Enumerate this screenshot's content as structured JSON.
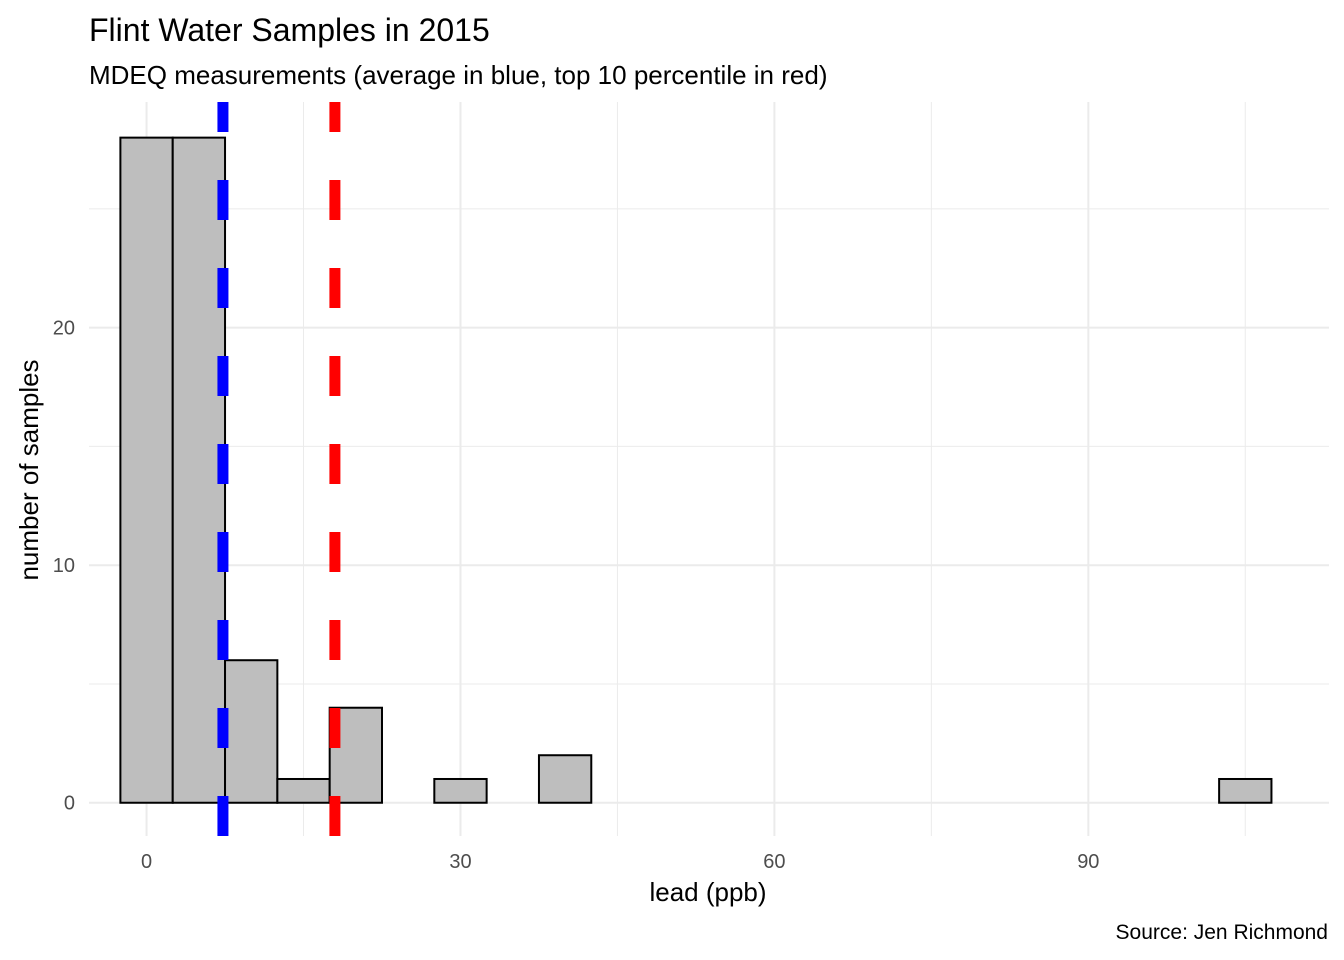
{
  "chart_data": {
    "type": "bar",
    "title": "Flint Water Samples in 2015",
    "subtitle": "MDEQ measurements (average in blue, top 10 percentile in red)",
    "caption": "Source: Jen Richmond",
    "xlabel": "lead (ppb)",
    "ylabel": "number of samples",
    "xlim": [
      -5.5,
      113
    ],
    "ylim": [
      -1.4,
      29.5
    ],
    "x_ticks": [
      0,
      30,
      60,
      90
    ],
    "y_ticks": [
      0,
      10,
      20
    ],
    "grid": true,
    "bin_width": 5,
    "bins": [
      {
        "start": -2.5,
        "end": 2.5,
        "count": 28
      },
      {
        "start": 2.5,
        "end": 7.5,
        "count": 28
      },
      {
        "start": 7.5,
        "end": 12.5,
        "count": 6
      },
      {
        "start": 12.5,
        "end": 17.5,
        "count": 1
      },
      {
        "start": 17.5,
        "end": 22.5,
        "count": 4
      },
      {
        "start": 22.5,
        "end": 27.5,
        "count": 0
      },
      {
        "start": 27.5,
        "end": 32.5,
        "count": 1
      },
      {
        "start": 32.5,
        "end": 37.5,
        "count": 0
      },
      {
        "start": 37.5,
        "end": 42.5,
        "count": 2
      },
      {
        "start": 42.5,
        "end": 47.5,
        "count": 0
      },
      {
        "start": 47.5,
        "end": 52.5,
        "count": 0
      },
      {
        "start": 52.5,
        "end": 57.5,
        "count": 0
      },
      {
        "start": 57.5,
        "end": 62.5,
        "count": 0
      },
      {
        "start": 62.5,
        "end": 67.5,
        "count": 0
      },
      {
        "start": 67.5,
        "end": 72.5,
        "count": 0
      },
      {
        "start": 72.5,
        "end": 77.5,
        "count": 0
      },
      {
        "start": 77.5,
        "end": 82.5,
        "count": 0
      },
      {
        "start": 82.5,
        "end": 87.5,
        "count": 0
      },
      {
        "start": 87.5,
        "end": 92.5,
        "count": 0
      },
      {
        "start": 92.5,
        "end": 97.5,
        "count": 0
      },
      {
        "start": 97.5,
        "end": 102.5,
        "count": 0
      },
      {
        "start": 102.5,
        "end": 107.5,
        "count": 1
      }
    ],
    "reference_lines": [
      {
        "label": "average",
        "x": 7.3,
        "color": "#0000ff"
      },
      {
        "label": "top 10 percentile",
        "x": 18,
        "color": "#ff0000"
      }
    ],
    "colors": {
      "bar_fill": "#bebebe",
      "bar_stroke": "#000000",
      "grid": "#ebebeb"
    }
  }
}
